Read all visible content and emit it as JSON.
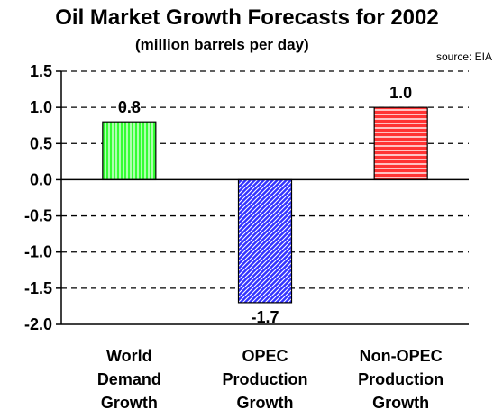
{
  "chart_data": {
    "type": "bar",
    "title": "Oil Market Growth Forecasts for 2002",
    "subtitle": "(million barrels per day)",
    "source": "source: EIA",
    "categories": [
      [
        "World",
        "Demand",
        "Growth"
      ],
      [
        "OPEC",
        "Production",
        "Growth"
      ],
      [
        "Non-OPEC",
        "Production",
        "Growth"
      ]
    ],
    "values": [
      0.8,
      -1.7,
      1.0
    ],
    "data_labels": [
      "0.8",
      "-1.7",
      "1.0"
    ],
    "bar_colors": [
      "#33ff33",
      "#3333ff",
      "#ff3333"
    ],
    "bar_patterns": [
      "vertical-lines",
      "diagonal-lines",
      "horizontal-lines"
    ],
    "ylim": [
      -2.0,
      1.5
    ],
    "yticks": [
      1.5,
      1.0,
      0.5,
      0.0,
      -0.5,
      -1.0,
      -1.5,
      -2.0
    ],
    "ytick_labels": [
      "1.5",
      "1.0",
      "0.5",
      "0.0",
      "-0.5",
      "-1.0",
      "-1.5",
      "-2.0"
    ],
    "grid": true,
    "xlabel": "",
    "ylabel": ""
  }
}
